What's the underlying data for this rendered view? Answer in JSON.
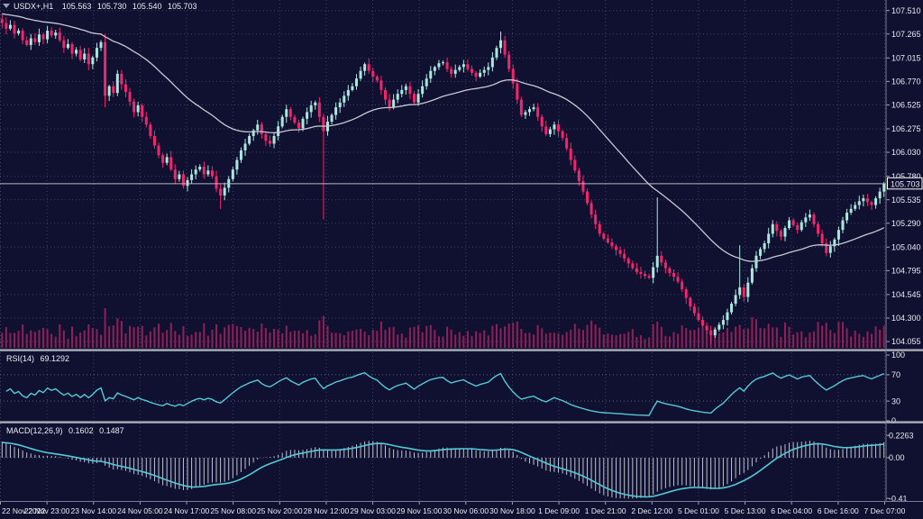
{
  "window": {
    "symbol": "USDX+,H1",
    "ohlc": {
      "open": "105.563",
      "high": "105.730",
      "low": "105.540",
      "close": "105.703"
    }
  },
  "price_axis": {
    "ticks": [
      "107.510",
      "107.265",
      "107.015",
      "106.770",
      "106.525",
      "106.275",
      "106.030",
      "105.780",
      "105.535",
      "105.290",
      "105.040",
      "104.795",
      "104.545",
      "104.300",
      "104.055"
    ],
    "current": "105.703"
  },
  "time_axis": {
    "labels": [
      "22 Nov 2022",
      "22 Nov 23:00",
      "23 Nov 14:00",
      "24 Nov 05:00",
      "24 Nov 17:00",
      "25 Nov 08:00",
      "25 Nov 20:00",
      "28 Nov 12:00",
      "29 Nov 03:00",
      "29 Nov 15:00",
      "30 Nov 06:00",
      "30 Nov 18:00",
      "1 Dec 09:00",
      "1 Dec 21:00",
      "2 Dec 12:00",
      "5 Dec 01:00",
      "5 Dec 13:00",
      "6 Dec 04:00",
      "6 Dec 16:00",
      "7 Dec 07:00"
    ]
  },
  "rsi": {
    "name": "RSI(14)",
    "value": "69.1292",
    "period": 14,
    "ticks": [
      "100",
      "70",
      "30",
      "0"
    ],
    "levels": [
      70,
      30
    ]
  },
  "macd": {
    "name": "MACD(12,26,9)",
    "main_value": "0.1602",
    "signal_value": "0.1487",
    "params": [
      12,
      26,
      9
    ],
    "ticks": [
      "0.2263",
      "0.00",
      "-0.41"
    ],
    "tick_values": [
      0.2263,
      0.0,
      -0.41
    ]
  },
  "colors": {
    "background": "#101130",
    "grid": "#3e4262",
    "bull_candle": "#a9e7df",
    "bear_candle": "#f3256d",
    "volume": "#8f2058",
    "moving_average": "#c8c8d4",
    "indicator_line": "#55c8d5",
    "macd_histogram": "#c0c3d0",
    "separator": "#aaacba",
    "axis_text": "#e8eaf2",
    "current_price_line": "#b9bac6"
  },
  "chart_data": {
    "type": "candlestick",
    "symbol": "USDX+",
    "timeframe": "H1",
    "title": "USDX+,H1 105.563 105.730 105.540 105.703",
    "price_range": [
      104.055,
      107.51
    ],
    "y_domain": [
      103.98,
      107.62
    ],
    "x_range": [
      "22 Nov 2022 00:00",
      "7 Dec 2022 07:00"
    ],
    "indicators": [
      "MA",
      "Volume",
      "RSI(14)",
      "MACD(12,26,9)"
    ],
    "ma": {
      "type": "ema",
      "period": 45,
      "seed": 107.48
    },
    "closes": [
      107.38,
      107.32,
      107.36,
      107.27,
      107.3,
      107.2,
      107.15,
      107.22,
      107.18,
      107.26,
      107.21,
      107.3,
      107.25,
      107.28,
      107.2,
      107.12,
      107.16,
      107.06,
      107.1,
      107.0,
      107.06,
      106.95,
      107.02,
      107.12,
      107.18,
      106.62,
      106.72,
      106.65,
      106.85,
      106.74,
      106.66,
      106.56,
      106.45,
      106.52,
      106.4,
      106.32,
      106.2,
      106.1,
      106.0,
      105.92,
      105.98,
      105.85,
      105.75,
      105.8,
      105.68,
      105.74,
      105.8,
      105.85,
      105.88,
      105.8,
      105.84,
      105.78,
      105.65,
      105.58,
      105.66,
      105.75,
      105.85,
      105.95,
      106.05,
      106.12,
      106.2,
      106.26,
      106.32,
      106.22,
      106.15,
      106.12,
      106.2,
      106.3,
      106.4,
      106.48,
      106.4,
      106.34,
      106.28,
      106.38,
      106.45,
      106.52,
      106.55,
      106.4,
      106.25,
      106.35,
      106.42,
      106.5,
      106.55,
      106.62,
      106.68,
      106.72,
      106.8,
      106.88,
      106.95,
      106.88,
      106.82,
      106.78,
      106.68,
      106.58,
      106.5,
      106.58,
      106.64,
      106.68,
      106.72,
      106.64,
      106.55,
      106.64,
      106.72,
      106.8,
      106.88,
      106.92,
      106.96,
      106.97,
      106.9,
      106.85,
      106.89,
      106.92,
      106.95,
      106.9,
      106.86,
      106.82,
      106.86,
      106.89,
      106.92,
      107.02,
      107.12,
      107.2,
      107.05,
      106.9,
      106.75,
      106.58,
      106.42,
      106.45,
      106.48,
      106.5,
      106.4,
      106.3,
      106.22,
      106.27,
      106.32,
      106.25,
      106.18,
      106.07,
      105.95,
      105.84,
      105.73,
      105.62,
      105.5,
      105.38,
      105.28,
      105.18,
      105.13,
      105.09,
      105.05,
      105.01,
      104.97,
      104.92,
      104.87,
      104.82,
      104.78,
      104.76,
      104.74,
      104.72,
      104.83,
      104.95,
      104.88,
      104.82,
      104.77,
      104.73,
      104.68,
      104.6,
      104.51,
      104.42,
      104.35,
      104.28,
      104.22,
      104.17,
      104.12,
      104.18,
      104.23,
      104.28,
      104.36,
      104.45,
      104.54,
      104.62,
      104.52,
      104.67,
      104.82,
      104.95,
      105.02,
      105.08,
      105.18,
      105.28,
      105.21,
      105.15,
      105.24,
      105.32,
      105.27,
      105.22,
      105.3,
      105.35,
      105.38,
      105.28,
      105.18,
      105.08,
      104.98,
      105.05,
      105.12,
      105.22,
      105.32,
      105.4,
      105.44,
      105.48,
      105.52,
      105.55,
      105.51,
      105.48,
      105.55,
      105.62,
      105.703
    ],
    "wick_spikes": [
      {
        "i": 0,
        "high": 107.47
      },
      {
        "i": 25,
        "low": 106.5
      },
      {
        "i": 53,
        "low": 105.44
      },
      {
        "i": 78,
        "low": 105.33
      },
      {
        "i": 121,
        "high": 107.29
      },
      {
        "i": 159,
        "high": 105.56
      },
      {
        "i": 172,
        "low": 104.03
      },
      {
        "i": 179,
        "high": 105.06
      }
    ]
  }
}
